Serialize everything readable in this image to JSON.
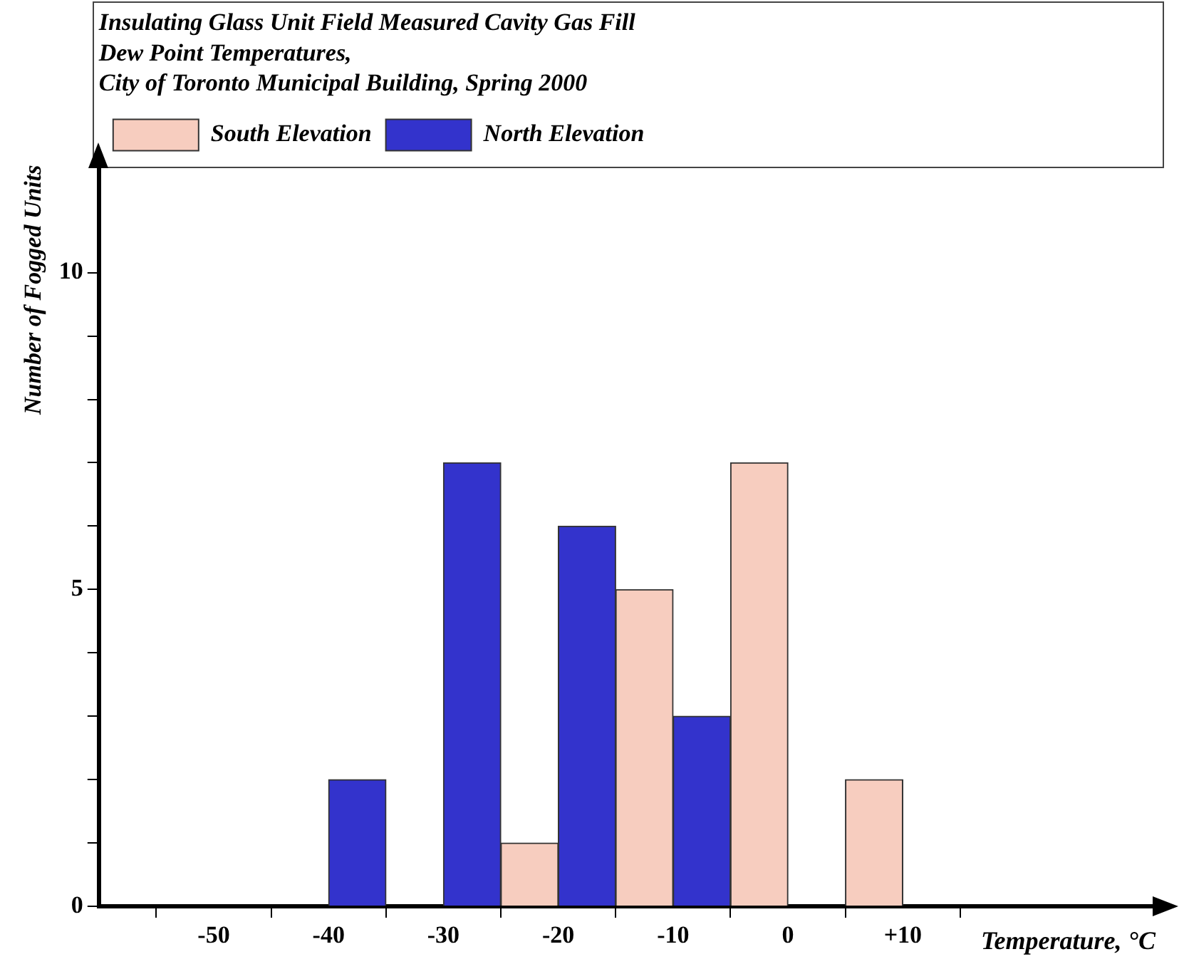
{
  "chart_data": {
    "type": "histogram",
    "title": "Insulating Glass Unit Field Measured Cavity Gas Fill\nDew Point Temperatures,\nCity of Toronto Municipal Building, Spring 2000",
    "xlabel": "Temperature, °C",
    "ylabel": "Number of Fogged Units",
    "bins": [
      -40,
      -35,
      -30,
      -25,
      -20,
      -15,
      -10,
      -5,
      0,
      5,
      10
    ],
    "series": [
      {
        "name": "South Elevation",
        "color": "#f7cdbf",
        "values": [
          null,
          null,
          null,
          1,
          null,
          5,
          null,
          7,
          null,
          2
        ]
      },
      {
        "name": "North Elevation",
        "color": "#3333cc",
        "values": [
          2,
          null,
          7,
          null,
          6,
          null,
          3,
          null,
          null,
          null
        ]
      }
    ],
    "xlim": [
      -60,
      32
    ],
    "xticks": [
      -50,
      -40,
      -30,
      -20,
      -10,
      0,
      {
        "value": 10,
        "label": "+10"
      }
    ],
    "ylim": [
      0,
      11.7
    ],
    "yticks": [
      0,
      {
        "value": 1,
        "label": null
      },
      {
        "value": 2,
        "label": null
      },
      {
        "value": 3,
        "label": null
      },
      {
        "value": 4,
        "label": null
      },
      5,
      {
        "value": 6,
        "label": null
      },
      {
        "value": 7,
        "label": null
      },
      {
        "value": 8,
        "label": null
      },
      {
        "value": 9,
        "label": null
      },
      10
    ],
    "grid": false,
    "legend": "top"
  }
}
